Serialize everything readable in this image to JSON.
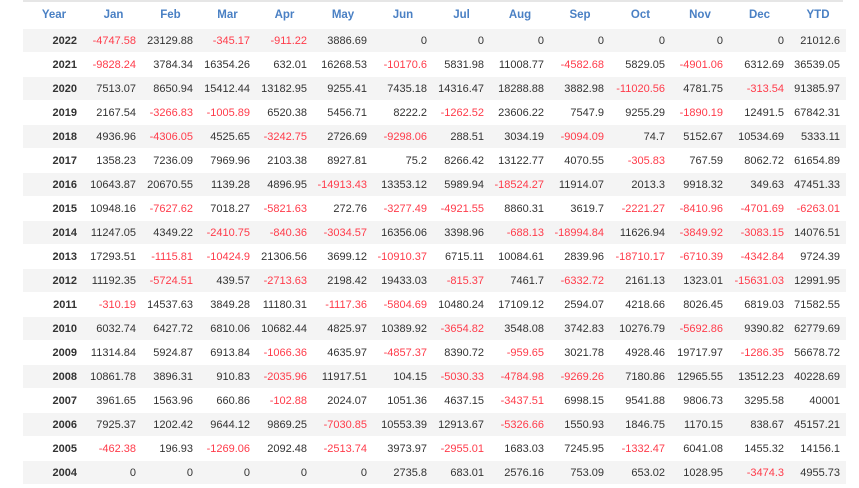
{
  "colors": {
    "header": "#4a80c4",
    "negative": "#ff3b4a",
    "text": "#333333",
    "row_alt": "#f4f4f4"
  },
  "table": {
    "headers": [
      "Year",
      "Jan",
      "Feb",
      "Mar",
      "Apr",
      "May",
      "Jun",
      "Jul",
      "Aug",
      "Sep",
      "Oct",
      "Nov",
      "Dec",
      "YTD"
    ],
    "rows": [
      [
        "2022",
        "-4747.58",
        "23129.88",
        "-345.17",
        "-911.22",
        "3886.69",
        "0",
        "0",
        "0",
        "0",
        "0",
        "0",
        "0",
        "21012.6"
      ],
      [
        "2021",
        "-9828.24",
        "3784.34",
        "16354.26",
        "632.01",
        "16268.53",
        "-10170.6",
        "5831.98",
        "11008.77",
        "-4582.68",
        "5829.05",
        "-4901.06",
        "6312.69",
        "36539.05"
      ],
      [
        "2020",
        "7513.07",
        "8650.94",
        "15412.44",
        "13182.95",
        "9255.41",
        "7435.18",
        "14316.47",
        "18288.88",
        "3882.98",
        "-11020.56",
        "4781.75",
        "-313.54",
        "91385.97"
      ],
      [
        "2019",
        "2167.54",
        "-3266.83",
        "-1005.89",
        "6520.38",
        "5456.71",
        "8222.2",
        "-1262.52",
        "23606.22",
        "7547.9",
        "9255.29",
        "-1890.19",
        "12491.5",
        "67842.31"
      ],
      [
        "2018",
        "4936.96",
        "-4306.05",
        "4525.65",
        "-3242.75",
        "2726.69",
        "-9298.06",
        "288.51",
        "3034.19",
        "-9094.09",
        "74.7",
        "5152.67",
        "10534.69",
        "5333.11"
      ],
      [
        "2017",
        "1358.23",
        "7236.09",
        "7969.96",
        "2103.38",
        "8927.81",
        "75.2",
        "8266.42",
        "13122.77",
        "4070.55",
        "-305.83",
        "767.59",
        "8062.72",
        "61654.89"
      ],
      [
        "2016",
        "10643.87",
        "20670.55",
        "1139.28",
        "4896.95",
        "-14913.43",
        "13353.12",
        "5989.94",
        "-18524.27",
        "11914.07",
        "2013.3",
        "9918.32",
        "349.63",
        "47451.33"
      ],
      [
        "2015",
        "10948.16",
        "-7627.62",
        "7018.27",
        "-5821.63",
        "272.76",
        "-3277.49",
        "-4921.55",
        "8860.31",
        "3619.7",
        "-2221.27",
        "-8410.96",
        "-4701.69",
        "-6263.01"
      ],
      [
        "2014",
        "11247.05",
        "4349.22",
        "-2410.75",
        "-840.36",
        "-3034.57",
        "16356.06",
        "3398.96",
        "-688.13",
        "-18994.84",
        "11626.94",
        "-3849.92",
        "-3083.15",
        "14076.51"
      ],
      [
        "2013",
        "17293.51",
        "-1115.81",
        "-10424.9",
        "21306.56",
        "3699.12",
        "-10910.37",
        "6715.11",
        "10084.61",
        "2839.96",
        "-18710.17",
        "-6710.39",
        "-4342.84",
        "9724.39"
      ],
      [
        "2012",
        "11192.35",
        "-5724.51",
        "439.57",
        "-2713.63",
        "2198.42",
        "19433.03",
        "-815.37",
        "7461.7",
        "-6332.72",
        "2161.13",
        "1323.01",
        "-15631.03",
        "12991.95"
      ],
      [
        "2011",
        "-310.19",
        "14537.63",
        "3849.28",
        "11180.31",
        "-1117.36",
        "-5804.69",
        "10480.24",
        "17109.12",
        "2594.07",
        "4218.66",
        "8026.45",
        "6819.03",
        "71582.55"
      ],
      [
        "2010",
        "6032.74",
        "6427.72",
        "6810.06",
        "10682.44",
        "4825.97",
        "10389.92",
        "-3654.82",
        "3548.08",
        "3742.83",
        "10276.79",
        "-5692.86",
        "9390.82",
        "62779.69"
      ],
      [
        "2009",
        "11314.84",
        "5924.87",
        "6913.84",
        "-1066.36",
        "4635.97",
        "-4857.37",
        "8390.72",
        "-959.65",
        "3021.78",
        "4928.46",
        "19717.97",
        "-1286.35",
        "56678.72"
      ],
      [
        "2008",
        "10861.78",
        "3896.31",
        "910.83",
        "-2035.96",
        "11917.51",
        "104.15",
        "-5030.33",
        "-4784.98",
        "-9269.26",
        "7180.86",
        "12965.55",
        "13512.23",
        "40228.69"
      ],
      [
        "2007",
        "3961.65",
        "1563.96",
        "660.86",
        "-102.88",
        "2024.07",
        "1051.36",
        "4637.15",
        "-3437.51",
        "6998.15",
        "9541.88",
        "9806.73",
        "3295.58",
        "40001"
      ],
      [
        "2006",
        "7925.37",
        "1202.42",
        "9644.12",
        "9869.25",
        "-7030.85",
        "10553.39",
        "12913.67",
        "-5326.66",
        "1550.93",
        "1846.75",
        "1170.15",
        "838.67",
        "45157.21"
      ],
      [
        "2005",
        "-462.38",
        "196.93",
        "-1269.06",
        "2092.48",
        "-2513.74",
        "3973.97",
        "-2955.01",
        "1683.03",
        "7245.95",
        "-1332.47",
        "6041.08",
        "1455.32",
        "14156.1"
      ],
      [
        "2004",
        "0",
        "0",
        "0",
        "0",
        "0",
        "2735.8",
        "683.01",
        "2576.16",
        "753.09",
        "653.02",
        "1028.95",
        "-3474.3",
        "4955.73"
      ]
    ]
  }
}
